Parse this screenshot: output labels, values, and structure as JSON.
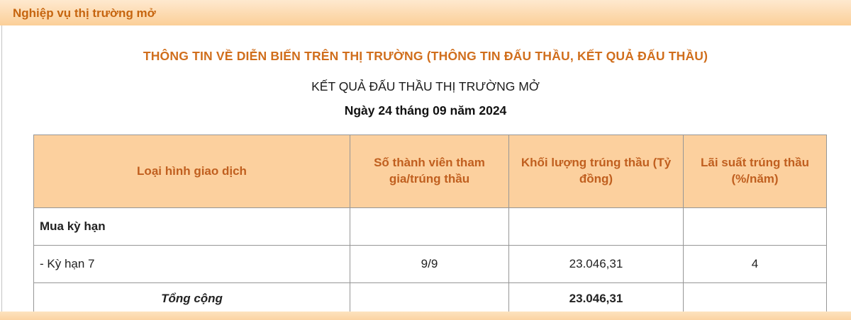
{
  "page": {
    "section_title": "Nghiệp vụ thị trường mở",
    "heading": "THÔNG TIN VỀ DIỄN BIẾN TRÊN THỊ TRƯỜNG (THÔNG TIN ĐẤU THẦU, KẾT QUẢ ĐẤU THẦU)",
    "subheading": "KẾT QUẢ ĐẤU THẦU THỊ TRƯỜNG MỞ",
    "date_line": "Ngày 24 tháng 09 năm 2024"
  },
  "table": {
    "columns": [
      "Loại hình giao dịch",
      "Số thành viên tham gia/trúng thầu",
      "Khối lượng trúng thầu (Tỷ đồng)",
      "Lãi suất trúng thầu (%/năm)"
    ],
    "rows": [
      {
        "type": "group",
        "cells": [
          "Mua kỳ hạn",
          "",
          "",
          ""
        ]
      },
      {
        "type": "data",
        "cells": [
          "- Kỳ hạn 7",
          "9/9",
          "23.046,31",
          "4"
        ]
      },
      {
        "type": "total",
        "cells": [
          "Tổng cộng",
          "",
          "23.046,31",
          ""
        ]
      }
    ]
  },
  "colors": {
    "bar_background": "#fcd6a6",
    "bar_text": "#c6650f",
    "heading_text": "#d06e1c",
    "header_cell_background": "#fcd09e",
    "header_cell_text": "#c05f1f",
    "table_border": "#969696",
    "body_text": "#222222"
  }
}
